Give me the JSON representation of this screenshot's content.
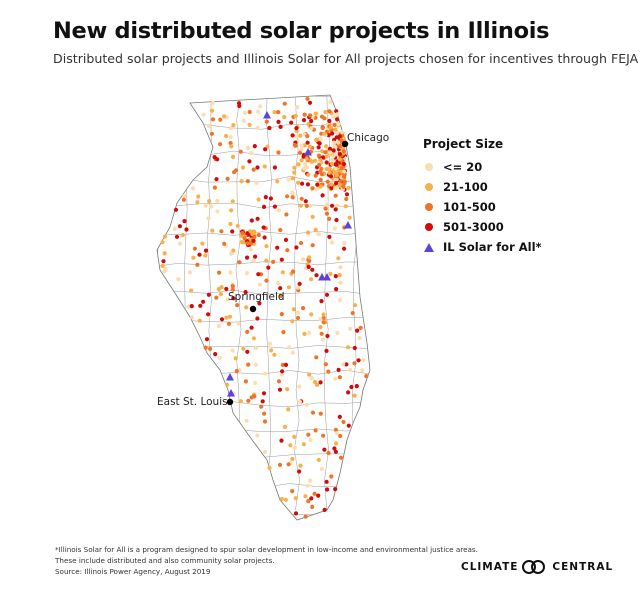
{
  "header": {
    "title": "New distributed solar projects in Illinois",
    "subtitle": "Distributed solar projects and Illinois Solar for All projects chosen for incentives through FEJA"
  },
  "legend": {
    "title": "Project Size",
    "items": [
      {
        "label": "<= 20",
        "color": "#fddcae",
        "shape": "circle"
      },
      {
        "label": "21-100",
        "color": "#f8b04a",
        "shape": "circle"
      },
      {
        "label": "101-500",
        "color": "#f07428",
        "shape": "circle"
      },
      {
        "label": "501-3000",
        "color": "#d40a0a",
        "shape": "circle"
      },
      {
        "label": "IL Solar for All*",
        "color": "#5b43e0",
        "shape": "triangle"
      }
    ]
  },
  "cities": [
    {
      "name": "Chicago"
    },
    {
      "name": "Springfield"
    },
    {
      "name": "East St. Louis"
    }
  ],
  "footer": {
    "lines": [
      "*Illinois Solar for All is a program designed to spur solar development in low-income and environmental justice areas.",
      "These include distributed and also community solar projects.",
      "Source: Illinois Power Agency, August 2019"
    ],
    "logo_left": "CLIMATE",
    "logo_right": "CENTRAL"
  }
}
